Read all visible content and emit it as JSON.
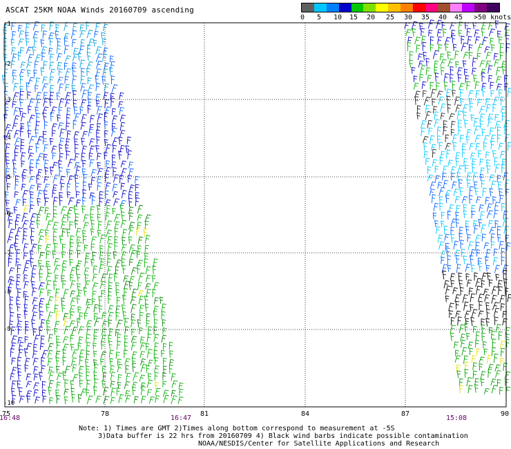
{
  "title": "ASCAT 25KM NOAA Winds 20160709 ascending",
  "colorbar": {
    "colors": [
      "#606060",
      "#00c8ff",
      "#0080ff",
      "#0000c8",
      "#00c800",
      "#80e000",
      "#ffff00",
      "#ffc000",
      "#ff8000",
      "#ff0000",
      "#ff0080",
      "#a05030",
      "#ff80ff",
      "#c000ff",
      "#800080",
      "#400060"
    ],
    "labels": [
      "0",
      "5",
      "10",
      "15",
      "20",
      "25",
      "30",
      "35",
      "40",
      "45",
      ">50 knots"
    ]
  },
  "axes": {
    "lat_labels": [
      "-1",
      "-2",
      "-3",
      "-4",
      "-5",
      "-6",
      "-7",
      "-8",
      "-9",
      "-10"
    ],
    "lon_labels": [
      "75",
      "78",
      "81",
      "84",
      "87",
      "90"
    ]
  },
  "times": [
    "16:48",
    "16:47",
    "15:08"
  ],
  "notes": {
    "line1": "Note: 1) Times are GMT 2)Times along bottom correspond to measurement at -5S",
    "line2": "3)Data buffer is 22 hrs from 20160709 4) Black wind barbs indicate possible contamination",
    "line3": "NOAA/NESDIS/Center for Satellite Applications and Research"
  },
  "swaths": [
    {
      "name": "west-swath",
      "speed_zones": [
        "blue-dark",
        "green"
      ]
    },
    {
      "name": "east-swath",
      "speed_zones": [
        "blue",
        "cyan",
        "black",
        "green"
      ]
    }
  ]
}
